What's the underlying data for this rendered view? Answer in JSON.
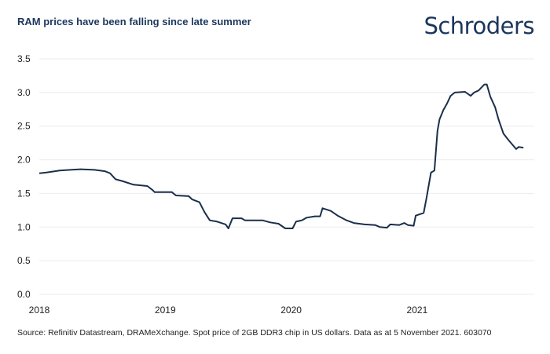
{
  "chart_data": {
    "type": "line",
    "title": "RAM prices have been falling since late summer",
    "xlabel": "",
    "ylabel": "",
    "ylim": [
      0,
      3.5
    ],
    "yticks": [
      "0.0",
      "0.5",
      "1.0",
      "1.5",
      "2.0",
      "2.5",
      "3.0",
      "3.5"
    ],
    "xticks": [
      "2018",
      "2019",
      "2020",
      "2021"
    ],
    "grid": "horizontal",
    "legend": "none",
    "line_color": "#1b2f4b",
    "series": [
      {
        "x": [
          "2018-01-01",
          "2018-01-20",
          "2018-03-01",
          "2018-04-01",
          "2018-05-01",
          "2018-06-10",
          "2018-07-10",
          "2018-07-25",
          "2018-08-10",
          "2018-09-01",
          "2018-10-01",
          "2018-11-10",
          "2018-11-25",
          "2018-12-01",
          "2019-01-20",
          "2019-02-01",
          "2019-03-10",
          "2019-03-20",
          "2019-04-10",
          "2019-04-25",
          "2019-05-10",
          "2019-06-01",
          "2019-06-25",
          "2019-07-03",
          "2019-07-15",
          "2019-08-10",
          "2019-08-20",
          "2019-10-10",
          "2019-11-01",
          "2019-11-25",
          "2019-12-15",
          "2020-01-05",
          "2020-01-15",
          "2020-02-01",
          "2020-02-15",
          "2020-03-10",
          "2020-03-25",
          "2020-04-01",
          "2020-04-25",
          "2020-05-15",
          "2020-06-10",
          "2020-07-01",
          "2020-08-01",
          "2020-09-01",
          "2020-09-15",
          "2020-10-05",
          "2020-10-15",
          "2020-11-10",
          "2020-11-25",
          "2020-12-05",
          "2020-12-22",
          "2020-12-28",
          "2021-01-20",
          "2021-01-28",
          "2021-02-10",
          "2021-02-20",
          "2021-03-01",
          "2021-03-07",
          "2021-03-18",
          "2021-03-28",
          "2021-04-08",
          "2021-04-20",
          "2021-05-20",
          "2021-06-05",
          "2021-06-15",
          "2021-06-28",
          "2021-07-15",
          "2021-07-22",
          "2021-08-01",
          "2021-08-15",
          "2021-08-25",
          "2021-09-08",
          "2021-09-20",
          "2021-10-15",
          "2021-10-22",
          "2021-11-05"
        ],
        "y": [
          1.8,
          1.81,
          1.84,
          1.85,
          1.86,
          1.85,
          1.83,
          1.8,
          1.71,
          1.68,
          1.63,
          1.61,
          1.55,
          1.52,
          1.52,
          1.47,
          1.46,
          1.41,
          1.37,
          1.22,
          1.1,
          1.08,
          1.04,
          0.98,
          1.13,
          1.13,
          1.1,
          1.1,
          1.07,
          1.05,
          0.98,
          0.98,
          1.08,
          1.1,
          1.14,
          1.16,
          1.16,
          1.28,
          1.24,
          1.17,
          1.1,
          1.06,
          1.04,
          1.03,
          1.0,
          0.99,
          1.04,
          1.03,
          1.06,
          1.03,
          1.02,
          1.17,
          1.21,
          1.43,
          1.81,
          1.84,
          2.43,
          2.6,
          2.74,
          2.83,
          2.95,
          3.0,
          3.01,
          2.95,
          3.0,
          3.03,
          3.12,
          3.12,
          2.94,
          2.78,
          2.6,
          2.39,
          2.31,
          2.16,
          2.19,
          2.18
        ]
      }
    ]
  },
  "logo": "Schroders",
  "source": "Source: Refinitiv Datastream, DRAMeXchange. Spot price of 2GB DDR3 chip in US dollars. Data as at 5 November 2021. 603070"
}
